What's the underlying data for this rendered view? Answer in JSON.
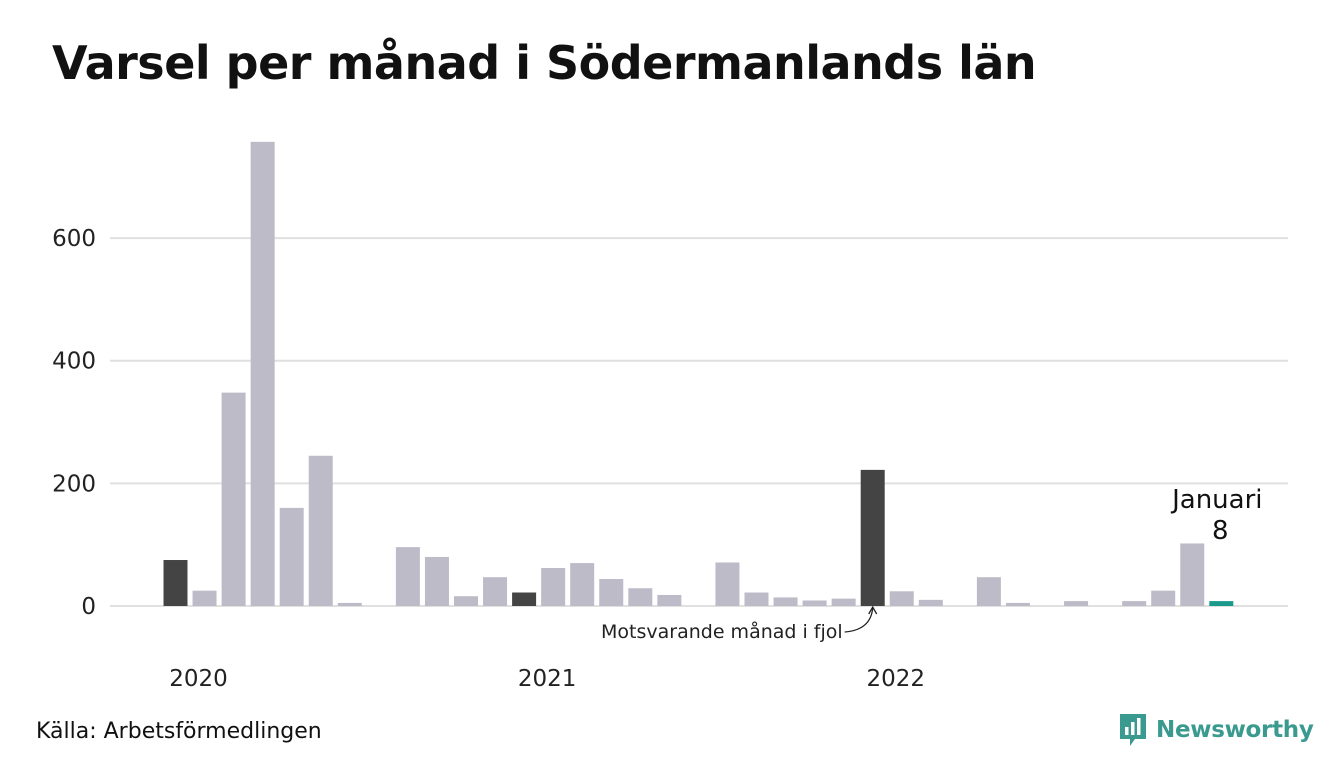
{
  "title": "Varsel per månad i Södermanlands län",
  "source": "Källa: Arbetsförmedlingen",
  "brand": {
    "name": "Newsworthy",
    "icon": "newsworthy-logo-icon",
    "color": "#3a9a8f"
  },
  "colors": {
    "default": "#bdbbc8",
    "highlight": "#444444",
    "current": "#1b9a8c",
    "grid": "#e0e0e0"
  },
  "chart_data": {
    "type": "bar",
    "title": "Varsel per månad i Södermanlands län",
    "xlabel": "",
    "ylabel": "",
    "ylim": [
      0,
      760
    ],
    "yticks": [
      0,
      200,
      400,
      600
    ],
    "grid": true,
    "x_tick_labels": [
      {
        "label": "2020",
        "index": 1
      },
      {
        "label": "2021",
        "index": 13
      },
      {
        "label": "2022",
        "index": 25
      }
    ],
    "months": [
      "2020-01",
      "2020-02",
      "2020-03",
      "2020-04",
      "2020-05",
      "2020-06",
      "2020-07",
      "2020-08",
      "2020-09",
      "2020-10",
      "2020-11",
      "2020-12",
      "2021-01",
      "2021-02",
      "2021-03",
      "2021-04",
      "2021-05",
      "2021-06",
      "2021-07",
      "2021-08",
      "2021-09",
      "2021-10",
      "2021-11",
      "2021-12",
      "2022-01",
      "2022-02",
      "2022-03",
      "2022-04",
      "2022-05",
      "2022-06",
      "2022-07",
      "2022-08",
      "2022-09",
      "2022-10",
      "2022-11",
      "2022-12",
      "2023-01"
    ],
    "values": [
      75,
      25,
      348,
      757,
      160,
      245,
      5,
      0,
      96,
      80,
      16,
      47,
      22,
      62,
      70,
      44,
      29,
      18,
      0,
      71,
      22,
      14,
      9,
      12,
      222,
      24,
      10,
      0,
      47,
      5,
      0,
      8,
      0,
      8,
      25,
      102,
      8
    ],
    "highlights": {
      "2020-01": "highlight",
      "2021-01": "highlight",
      "2022-01": "highlight",
      "2023-01": "current"
    },
    "annotations": [
      {
        "text": "Motsvarande månad i fjol",
        "month": "2022-01"
      },
      {
        "label": "Januari",
        "value": "8",
        "month": "2023-01"
      }
    ]
  }
}
